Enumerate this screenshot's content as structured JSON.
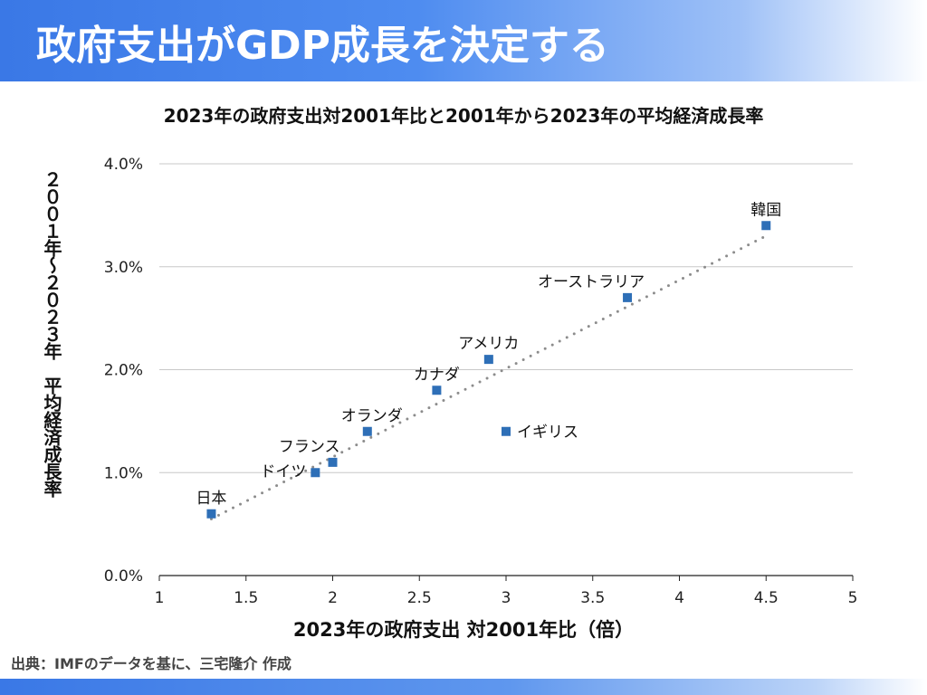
{
  "header": {
    "title": "政府支出がGDP成長を決定する"
  },
  "source": "出典：IMFのデータを基に、三宅隆介 作成",
  "chart_data": {
    "type": "scatter",
    "title": "2023年の政府支出対2001年比と2001年から2023年の平均経済成長率",
    "xlabel": "2023年の政府支出 対2001年比（倍）",
    "ylabel": "２００１年～２０２３年　平均経済成長率",
    "xlim": [
      1,
      5
    ],
    "ylim": [
      0.0,
      4.0
    ],
    "x_ticks": [
      "1",
      "1.5",
      "2",
      "2.5",
      "3",
      "3.5",
      "4",
      "4.5",
      "5"
    ],
    "y_ticks": [
      "0.0%",
      "1.0%",
      "2.0%",
      "3.0%",
      "4.0%"
    ],
    "grid": true,
    "trendline": {
      "style": "dotted",
      "x": [
        1.3,
        4.5
      ],
      "y": [
        0.55,
        3.3
      ]
    },
    "series": [
      {
        "color": "#2e6fb7",
        "points": [
          {
            "label": "日本",
            "x": 1.3,
            "y": 0.6
          },
          {
            "label": "ドイツ",
            "x": 1.9,
            "y": 1.0
          },
          {
            "label": "フランス",
            "x": 2.0,
            "y": 1.1
          },
          {
            "label": "オランダ",
            "x": 2.2,
            "y": 1.4
          },
          {
            "label": "カナダ",
            "x": 2.6,
            "y": 1.8
          },
          {
            "label": "アメリカ",
            "x": 2.9,
            "y": 2.1
          },
          {
            "label": "イギリス",
            "x": 3.0,
            "y": 1.4
          },
          {
            "label": "オーストラリア",
            "x": 3.7,
            "y": 2.7
          },
          {
            "label": "韓国",
            "x": 4.5,
            "y": 3.4
          }
        ]
      }
    ]
  }
}
